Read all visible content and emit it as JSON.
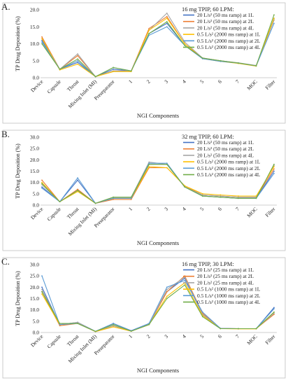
{
  "figure": {
    "panels": [
      {
        "label": "A.",
        "condition": "16 mg TPIP, 60 LPM:",
        "ylabel": "TP Drug Deposition (%)",
        "xlabel": "NGI Components"
      },
      {
        "label": "B.",
        "condition": "32 mg TPIP, 60 LPM:",
        "ylabel": "TP Drug Deposition (%)",
        "xlabel": "NGI Components"
      },
      {
        "label": "C.",
        "condition": "16 mg TPIP, 30 LPM:",
        "ylabel": "TP Drug Deposition (%)",
        "xlabel": "NGI Components"
      }
    ]
  },
  "chart_data": [
    {
      "type": "line",
      "title": "16 mg TPIP, 60 LPM:",
      "xlabel": "NGI Components",
      "ylabel": "TP Drug Deposition (%)",
      "ylim": [
        0,
        20
      ],
      "yticks": [
        0,
        5,
        10,
        15,
        20
      ],
      "grid": false,
      "legend": "right",
      "categories": [
        "Device",
        "Capsule",
        "Throat",
        "Mixing Inlet (MI)",
        "Preseparator",
        "1",
        "2",
        "3",
        "4",
        "5",
        "6",
        "7",
        "MOC",
        "Filter"
      ],
      "series": [
        {
          "name": "20 L/s² (50 ms ramp) at 1L",
          "color": "#4472c4",
          "values": [
            11.0,
            2.5,
            4.5,
            0.3,
            2.5,
            2.0,
            13.0,
            16.0,
            9.5,
            5.6,
            5.0,
            4.3,
            3.5,
            17.5
          ]
        },
        {
          "name": "20 L/s² (50 ms ramp) at 2L",
          "color": "#ed7d31",
          "values": [
            12.0,
            2.5,
            6.5,
            0.3,
            2.0,
            2.0,
            14.5,
            18.0,
            10.0,
            5.8,
            5.0,
            4.3,
            3.5,
            17.0
          ]
        },
        {
          "name": "20 L/s² (50 ms ramp) at 4L",
          "color": "#a5a5a5",
          "values": [
            11.5,
            2.5,
            7.0,
            0.3,
            2.0,
            2.0,
            14.0,
            19.0,
            10.5,
            5.8,
            5.0,
            4.4,
            3.6,
            17.0
          ]
        },
        {
          "name": "0.5 L/s² (2000 ms ramp) at 1L",
          "color": "#ffc000",
          "values": [
            11.5,
            2.3,
            4.0,
            0.3,
            1.8,
            1.8,
            14.0,
            17.5,
            10.0,
            5.6,
            4.8,
            4.2,
            3.4,
            17.5
          ]
        },
        {
          "name": "0.5 L/s² (2000 ms ramp) at 2L",
          "color": "#5b9bd5",
          "values": [
            10.5,
            2.5,
            5.0,
            0.3,
            3.0,
            2.0,
            12.5,
            15.0,
            9.5,
            5.6,
            4.8,
            4.3,
            3.5,
            16.0
          ]
        },
        {
          "name": "0.5 L/s² (2000 ms ramp) at 4L",
          "color": "#70ad47",
          "values": [
            10.0,
            2.5,
            5.5,
            0.3,
            3.0,
            2.0,
            13.0,
            16.5,
            9.5,
            5.8,
            5.0,
            4.3,
            3.5,
            18.5
          ]
        }
      ]
    },
    {
      "type": "line",
      "title": "32 mg TPIP, 60 LPM:",
      "xlabel": "NGI Components",
      "ylabel": "TP Drug Deposition (%)",
      "ylim": [
        0,
        30
      ],
      "yticks": [
        0,
        5,
        10,
        15,
        20,
        25,
        30
      ],
      "grid": false,
      "legend": "right",
      "categories": [
        "Device",
        "Capsule",
        "Throat",
        "Mixing Inlet (MI)",
        "Preseparator",
        "1",
        "2",
        "3",
        "4",
        "5",
        "6",
        "7",
        "MOC",
        "Filter"
      ],
      "series": [
        {
          "name": "20 L/s² (50 ms ramp) at 1L",
          "color": "#4472c4",
          "values": [
            8.0,
            1.5,
            11.0,
            0.8,
            3.0,
            3.0,
            18.0,
            18.0,
            8.0,
            4.0,
            3.5,
            3.0,
            3.0,
            15.0
          ]
        },
        {
          "name": "20 L/s² (50 ms ramp) at 2L",
          "color": "#ed7d31",
          "values": [
            11.0,
            1.5,
            7.0,
            0.8,
            2.5,
            2.5,
            16.5,
            16.5,
            8.5,
            4.5,
            4.0,
            3.5,
            3.5,
            16.0
          ]
        },
        {
          "name": "20 L/s² (50 ms ramp) at 4L",
          "color": "#a5a5a5",
          "values": [
            9.0,
            1.5,
            6.5,
            0.8,
            3.5,
            3.5,
            19.0,
            18.0,
            8.0,
            4.5,
            4.0,
            3.5,
            3.5,
            17.5
          ]
        },
        {
          "name": "0.5 L/s² (2000 ms ramp) at 1L",
          "color": "#ffc000",
          "values": [
            10.0,
            1.5,
            6.0,
            0.8,
            3.0,
            3.0,
            17.0,
            16.5,
            8.5,
            5.0,
            4.5,
            4.0,
            4.0,
            17.0
          ]
        },
        {
          "name": "0.5 L/s² (2000 ms ramp) at 2L",
          "color": "#5b9bd5",
          "values": [
            7.5,
            1.5,
            12.0,
            0.8,
            3.0,
            3.0,
            18.5,
            18.5,
            8.0,
            4.0,
            3.5,
            3.0,
            3.0,
            14.0
          ]
        },
        {
          "name": "0.5 L/s² (2000 ms ramp) at 4L",
          "color": "#70ad47",
          "values": [
            9.5,
            1.5,
            6.5,
            0.8,
            3.5,
            3.5,
            18.0,
            18.0,
            8.0,
            4.0,
            3.5,
            3.0,
            3.0,
            18.0
          ]
        }
      ]
    },
    {
      "type": "line",
      "title": "16 mg TPIP, 30 LPM:",
      "xlabel": "NGI Components",
      "ylabel": "TP Drug Deposition (%)",
      "ylim": [
        0,
        30
      ],
      "yticks": [
        0,
        5,
        10,
        15,
        20,
        25,
        30
      ],
      "grid": false,
      "legend": "right",
      "categories": [
        "Device",
        "Capsule",
        "Throat",
        "Mixing Inlet (MI)",
        "Preseparator",
        "1",
        "2",
        "3",
        "4",
        "5",
        "6",
        "7",
        "MOC",
        "Filter"
      ],
      "series": [
        {
          "name": "20 L/s² (25 ms ramp) at 1L",
          "color": "#4472c4",
          "values": [
            20.0,
            3.5,
            4.5,
            0.5,
            4.0,
            0.8,
            4.0,
            18.0,
            24.0,
            8.0,
            1.8,
            1.7,
            1.7,
            11.0
          ]
        },
        {
          "name": "20 L/s² (25 ms ramp) at 2L",
          "color": "#ed7d31",
          "values": [
            18.0,
            3.0,
            4.0,
            0.4,
            2.5,
            0.6,
            3.5,
            18.0,
            25.0,
            8.5,
            1.8,
            1.7,
            1.7,
            8.0
          ]
        },
        {
          "name": "20 L/s² (25 ms ramp) at 4L",
          "color": "#a5a5a5",
          "values": [
            19.0,
            3.5,
            4.5,
            0.4,
            3.0,
            0.6,
            3.5,
            19.0,
            24.5,
            8.0,
            1.8,
            1.7,
            1.7,
            8.5
          ]
        },
        {
          "name": "0.5 L/s² (1000 ms ramp) at 1L",
          "color": "#ffc000",
          "values": [
            17.0,
            3.5,
            4.0,
            0.4,
            2.5,
            0.6,
            3.5,
            16.0,
            22.0,
            7.5,
            1.7,
            1.6,
            1.6,
            9.0
          ]
        },
        {
          "name": "0.5 L/s² (1000 ms ramp) at 2L",
          "color": "#5b9bd5",
          "values": [
            25.0,
            3.5,
            4.0,
            0.5,
            4.0,
            0.7,
            4.0,
            20.0,
            23.0,
            9.0,
            1.8,
            1.7,
            1.7,
            10.5
          ]
        },
        {
          "name": "0.5 L/s² (1000 ms ramp) at 4L",
          "color": "#70ad47",
          "values": [
            18.0,
            4.0,
            4.0,
            0.5,
            3.5,
            0.6,
            3.5,
            15.0,
            21.0,
            7.0,
            1.7,
            1.7,
            1.7,
            9.0
          ]
        }
      ]
    }
  ]
}
